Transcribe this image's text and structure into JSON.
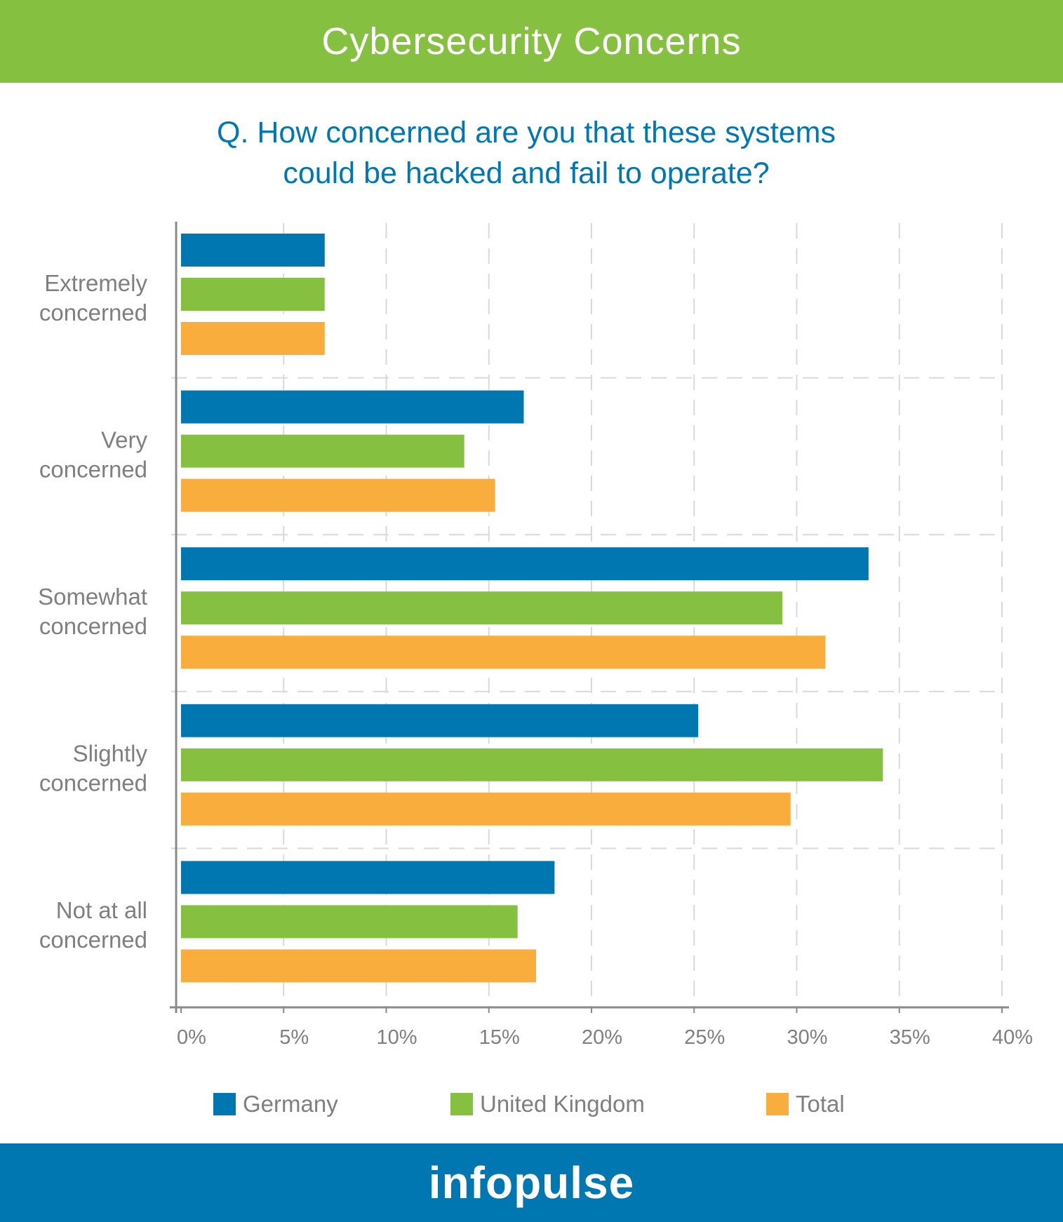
{
  "header": {
    "title": "Cybersecurity Concerns"
  },
  "question": {
    "line1": "Q. How concerned are you that these systems",
    "line2": "could be hacked and fail to operate?"
  },
  "colors": {
    "header_bg": "#86c040",
    "footer_bg": "#0077b0",
    "question_text": "#0077b0",
    "axis_text": "#7f7f7f"
  },
  "chart_data": {
    "type": "bar",
    "orientation": "horizontal",
    "categories": [
      [
        "Extremely",
        "concerned"
      ],
      [
        "Very",
        "concerned"
      ],
      [
        "Somewhat",
        "concerned"
      ],
      [
        "Slightly",
        "concerned"
      ],
      [
        "Not at all",
        "concerned"
      ]
    ],
    "series": [
      {
        "name": "Germany",
        "color": "#0077b0",
        "values": [
          7,
          16.7,
          33.5,
          25.2,
          18.2
        ]
      },
      {
        "name": "United Kingdom",
        "color": "#86c040",
        "values": [
          7,
          13.8,
          29.3,
          34.2,
          16.4
        ]
      },
      {
        "name": "Total",
        "color": "#f9ad3d",
        "values": [
          7,
          15.3,
          31.4,
          29.7,
          17.3
        ]
      }
    ],
    "xlim": [
      0,
      40
    ],
    "ticks": [
      0,
      5,
      10,
      15,
      20,
      25,
      30,
      35,
      40
    ],
    "tick_labels": [
      "0%",
      "5%",
      "10%",
      "15%",
      "20%",
      "25%",
      "30%",
      "35%",
      "40%"
    ],
    "grid": true,
    "legend_position": "bottom"
  },
  "footer": {
    "logo_text": "infopulse"
  }
}
